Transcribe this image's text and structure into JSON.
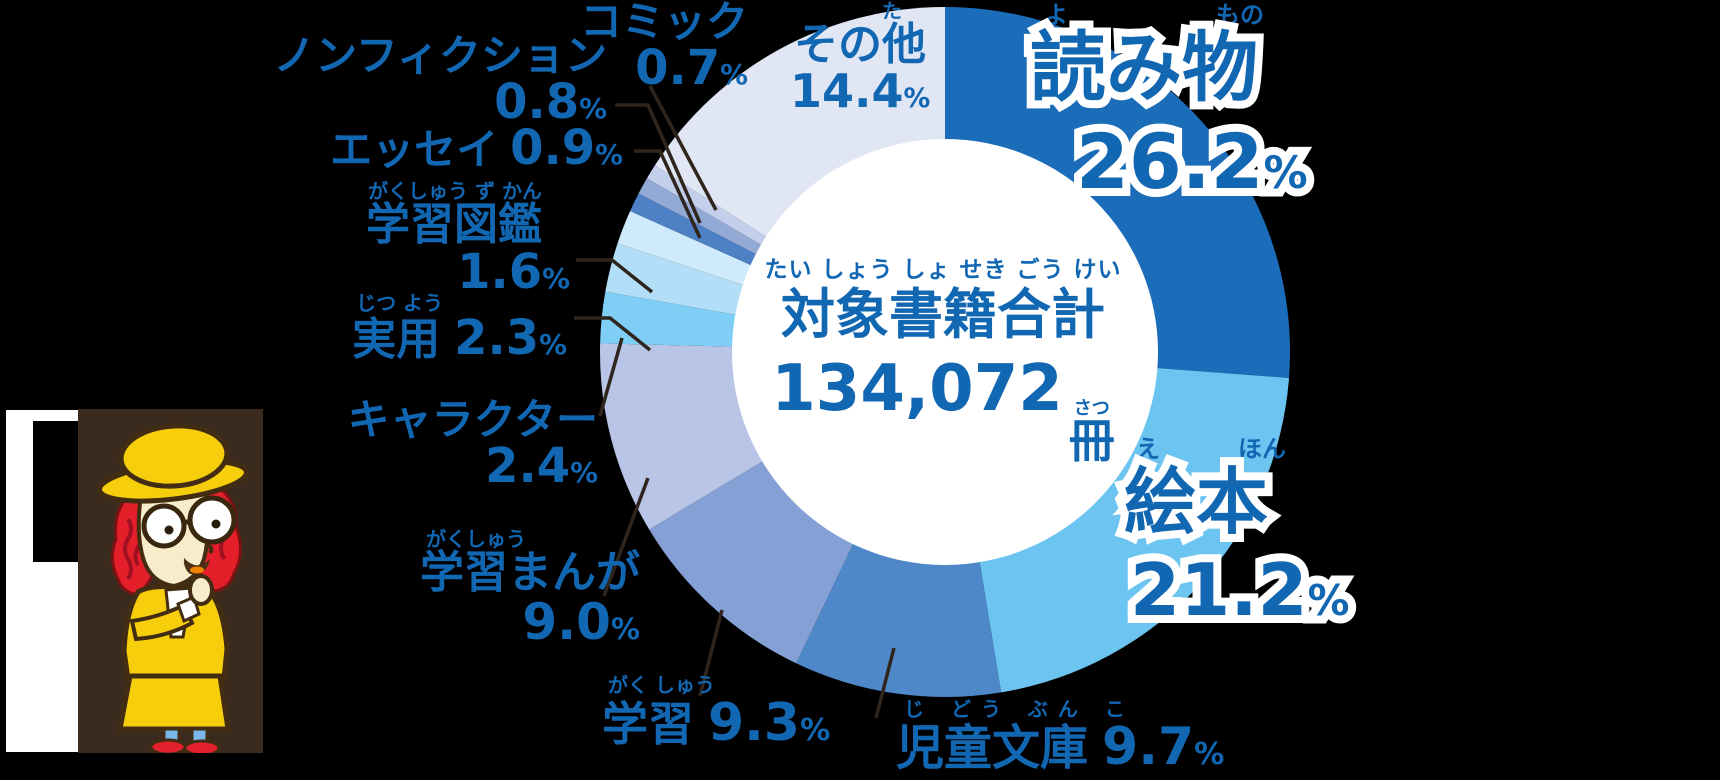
{
  "scene": {
    "background_color": "#000000",
    "text_blue": "#1267b3",
    "leader_line_color": "#2f251c"
  },
  "chart_data": {
    "type": "donut",
    "unit_symbol": "%",
    "legend_position": "around-slices",
    "center": {
      "furigana": "たい しょう しょ  せき  ごう  けい",
      "title": "対象書籍合計",
      "total_number": "134,072",
      "total_unit": "冊",
      "total_unit_furigana": "さつ"
    },
    "segments": [
      {
        "label": "読み物",
        "furigana_parts": [
          "よ",
          "もの"
        ],
        "value": 26.2,
        "display": "26.2",
        "color": "#1b6db9"
      },
      {
        "label": "絵本",
        "furigana_parts": [
          "え",
          "ほん"
        ],
        "value": 21.2,
        "display": "21.2",
        "color": "#6cc4f0"
      },
      {
        "label": "児童文庫",
        "furigana": "じ  どう  ぶん  こ",
        "value": 9.7,
        "display": "9.7",
        "color": "#4e88c8"
      },
      {
        "label": "学習",
        "furigana": "がく しゅう",
        "value": 9.3,
        "display": "9.3",
        "color": "#84a0d4"
      },
      {
        "label": "学習まんが",
        "furigana": "がくしゅう",
        "value": 9.0,
        "display": "9.0",
        "color": "#b8c5e6"
      },
      {
        "label": "キャラクター",
        "furigana": "",
        "value": 2.4,
        "display": "2.4",
        "color": "#7fcef5"
      },
      {
        "label": "実用",
        "furigana": "じつ よう",
        "value": 2.3,
        "display": "2.3",
        "color": "#b3def7"
      },
      {
        "label": "学習図鑑",
        "furigana": "がくしゅう ず かん",
        "value": 1.6,
        "display": "1.6",
        "color": "#cfeafb"
      },
      {
        "label": "エッセイ",
        "furigana": "",
        "value": 0.9,
        "display": "0.9",
        "color": "#4e80c5"
      },
      {
        "label": "ノンフィクション",
        "furigana": "",
        "value": 0.8,
        "display": "0.8",
        "color": "#93a9d6"
      },
      {
        "label": "コミック",
        "furigana": "",
        "value": 0.7,
        "display": "0.7",
        "color": "#c3cfeb"
      },
      {
        "label": "その他",
        "furigana": "た",
        "value": 14.4,
        "display": "14.4",
        "color": "#e1e6f4"
      }
    ]
  },
  "mascot": {
    "panel_color": "#3b2b1e",
    "hat_color": "#f7ce0b",
    "hair_color": "#e41f2a",
    "skin_color": "#f8edca",
    "coat_color": "#f7ce0b",
    "shirt_color": "#ffffff",
    "leg_color": "#79b7e8",
    "shoe_color": "#e3202d",
    "outline_color": "#432d12"
  }
}
